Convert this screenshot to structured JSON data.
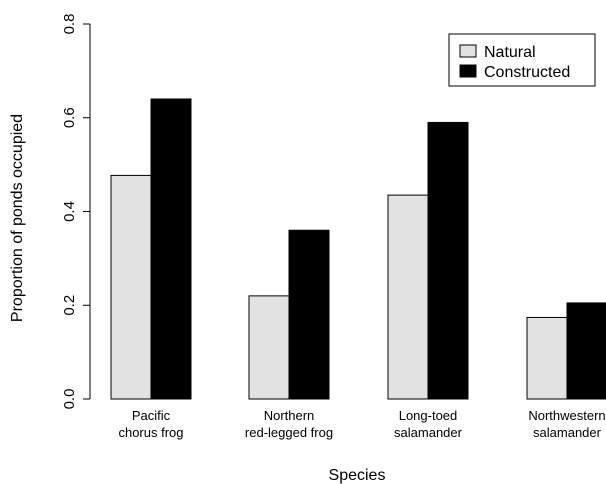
{
  "chart_data": {
    "type": "bar",
    "title": "",
    "xlabel": "Species",
    "ylabel": "Proportion of ponds occupied",
    "ylim": [
      0,
      0.8
    ],
    "yticks": [
      "0.0",
      "0.2",
      "0.4",
      "0.6",
      "0.8"
    ],
    "categories": [
      [
        "Pacific",
        "chorus frog"
      ],
      [
        "Northern",
        "red-legged frog"
      ],
      [
        "Long-toed",
        "salamander"
      ],
      [
        "Northwestern",
        "salamander"
      ]
    ],
    "series": [
      {
        "name": "Natural",
        "color": "#e2e2e2",
        "values": [
          0.477,
          0.22,
          0.435,
          0.174
        ]
      },
      {
        "name": "Constructed",
        "color": "#000000",
        "values": [
          0.64,
          0.36,
          0.59,
          0.205
        ]
      }
    ],
    "legend": {
      "position": "top-right"
    },
    "grid": false
  }
}
